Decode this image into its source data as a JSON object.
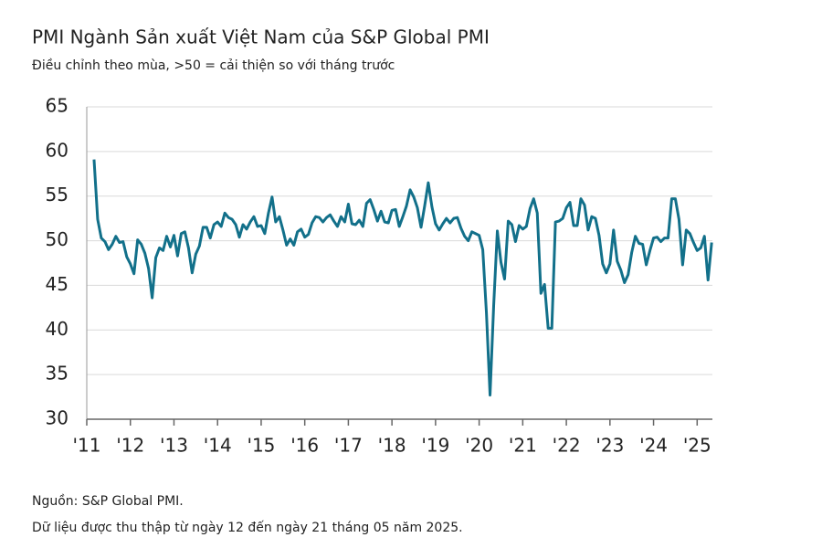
{
  "chart_data": {
    "type": "line",
    "title": "PMI Ngành Sản xuất Việt Nam của S&P Global PMI",
    "subtitle": "Điều chỉnh theo mùa, >50 = cải thiện so với tháng trước",
    "notes": [
      "Nguồn: S&P Global PMI.",
      "Dữ liệu được thu thập từ ngày 12 đến ngày 21 tháng 05 năm 2025."
    ],
    "grid": true,
    "ylim": [
      30,
      65
    ],
    "yticks": [
      30,
      35,
      40,
      45,
      50,
      55,
      60,
      65
    ],
    "xlim": [
      2011,
      2025.35
    ],
    "xticks": [
      {
        "value": 2011,
        "label": "'11"
      },
      {
        "value": 2012,
        "label": "'12"
      },
      {
        "value": 2013,
        "label": "'13"
      },
      {
        "value": 2014,
        "label": "'14"
      },
      {
        "value": 2015,
        "label": "'15"
      },
      {
        "value": 2016,
        "label": "'16"
      },
      {
        "value": 2017,
        "label": "'17"
      },
      {
        "value": 2018,
        "label": "'18"
      },
      {
        "value": 2019,
        "label": "'19"
      },
      {
        "value": 2020,
        "label": "'20"
      },
      {
        "value": 2021,
        "label": "'21"
      },
      {
        "value": 2022,
        "label": "'22"
      },
      {
        "value": 2023,
        "label": "'23"
      },
      {
        "value": 2024,
        "label": "'24"
      },
      {
        "value": 2025,
        "label": "'25"
      }
    ],
    "x": [
      2011.167,
      2011.25,
      2011.333,
      2011.417,
      2011.5,
      2011.583,
      2011.667,
      2011.75,
      2011.833,
      2011.917,
      2012,
      2012.083,
      2012.167,
      2012.25,
      2012.333,
      2012.417,
      2012.5,
      2012.583,
      2012.667,
      2012.75,
      2012.833,
      2012.917,
      2013,
      2013.083,
      2013.167,
      2013.25,
      2013.333,
      2013.417,
      2013.5,
      2013.583,
      2013.667,
      2013.75,
      2013.833,
      2013.917,
      2014,
      2014.083,
      2014.167,
      2014.25,
      2014.333,
      2014.417,
      2014.5,
      2014.583,
      2014.667,
      2014.75,
      2014.833,
      2014.917,
      2015,
      2015.083,
      2015.167,
      2015.25,
      2015.333,
      2015.417,
      2015.5,
      2015.583,
      2015.667,
      2015.75,
      2015.833,
      2015.917,
      2016,
      2016.083,
      2016.167,
      2016.25,
      2016.333,
      2016.417,
      2016.5,
      2016.583,
      2016.667,
      2016.75,
      2016.833,
      2016.917,
      2017,
      2017.083,
      2017.167,
      2017.25,
      2017.333,
      2017.417,
      2017.5,
      2017.583,
      2017.667,
      2017.75,
      2017.833,
      2017.917,
      2018,
      2018.083,
      2018.167,
      2018.25,
      2018.333,
      2018.417,
      2018.5,
      2018.583,
      2018.667,
      2018.75,
      2018.833,
      2018.917,
      2019,
      2019.083,
      2019.167,
      2019.25,
      2019.333,
      2019.417,
      2019.5,
      2019.583,
      2019.667,
      2019.75,
      2019.833,
      2019.917,
      2020,
      2020.083,
      2020.167,
      2020.25,
      2020.333,
      2020.417,
      2020.5,
      2020.583,
      2020.667,
      2020.75,
      2020.833,
      2020.917,
      2021,
      2021.083,
      2021.167,
      2021.25,
      2021.333,
      2021.417,
      2021.5,
      2021.583,
      2021.667,
      2021.75,
      2021.833,
      2021.917,
      2022,
      2022.083,
      2022.167,
      2022.25,
      2022.333,
      2022.417,
      2022.5,
      2022.583,
      2022.667,
      2022.75,
      2022.833,
      2022.917,
      2023,
      2023.083,
      2023.167,
      2023.25,
      2023.333,
      2023.417,
      2023.5,
      2023.583,
      2023.667,
      2023.75,
      2023.833,
      2023.917,
      2024,
      2024.083,
      2024.167,
      2024.25,
      2024.333,
      2024.417,
      2024.5,
      2024.583,
      2024.667,
      2024.75,
      2024.833,
      2024.917,
      2025,
      2025.083,
      2025.167,
      2025.25,
      2025.333
    ],
    "series": [
      {
        "color": "#12708a",
        "values": [
          59.1,
          52.4,
          50.3,
          49.9,
          49.0,
          49.6,
          50.5,
          49.8,
          49.9,
          48.2,
          47.4,
          46.3,
          50.1,
          49.6,
          48.6,
          46.9,
          43.6,
          48.1,
          49.2,
          48.9,
          50.5,
          49.3,
          50.6,
          48.3,
          50.8,
          51.0,
          49.2,
          46.4,
          48.5,
          49.4,
          51.5,
          51.5,
          50.3,
          51.8,
          52.1,
          51.6,
          53.1,
          52.6,
          52.4,
          51.8,
          50.4,
          51.8,
          51.3,
          52.1,
          52.7,
          51.6,
          51.7,
          50.8,
          53.1,
          54.9,
          52.1,
          52.7,
          51.2,
          49.5,
          50.2,
          49.5,
          51.0,
          51.3,
          50.4,
          50.7,
          52.0,
          52.7,
          52.6,
          52.1,
          52.6,
          52.9,
          52.2,
          51.6,
          52.7,
          52.1,
          54.1,
          51.9,
          51.8,
          52.3,
          51.6,
          54.2,
          54.6,
          53.5,
          52.2,
          53.3,
          52.1,
          52.0,
          53.4,
          53.5,
          51.6,
          52.7,
          53.9,
          55.7,
          54.9,
          53.7,
          51.5,
          53.9,
          56.5,
          53.8,
          51.9,
          51.2,
          51.9,
          52.5,
          52.0,
          52.5,
          52.6,
          51.4,
          50.5,
          50.0,
          51.0,
          50.8,
          50.6,
          49.0,
          41.9,
          32.7,
          42.7,
          51.1,
          47.6,
          45.7,
          52.2,
          51.8,
          49.9,
          51.7,
          51.3,
          51.6,
          53.6,
          54.7,
          53.1,
          44.1,
          45.1,
          40.2,
          40.2,
          52.1,
          52.2,
          52.5,
          53.7,
          54.3,
          51.7,
          51.7,
          54.7,
          54.0,
          51.2,
          52.7,
          52.5,
          50.6,
          47.4,
          46.4,
          47.4,
          51.2,
          47.7,
          46.7,
          45.3,
          46.2,
          48.7,
          50.5,
          49.7,
          49.6,
          47.3,
          48.9,
          50.3,
          50.4,
          49.9,
          50.3,
          50.3,
          54.7,
          54.7,
          52.4,
          47.3,
          51.2,
          50.8,
          49.8,
          48.9,
          49.2,
          50.5,
          45.6,
          49.8
        ]
      }
    ]
  }
}
